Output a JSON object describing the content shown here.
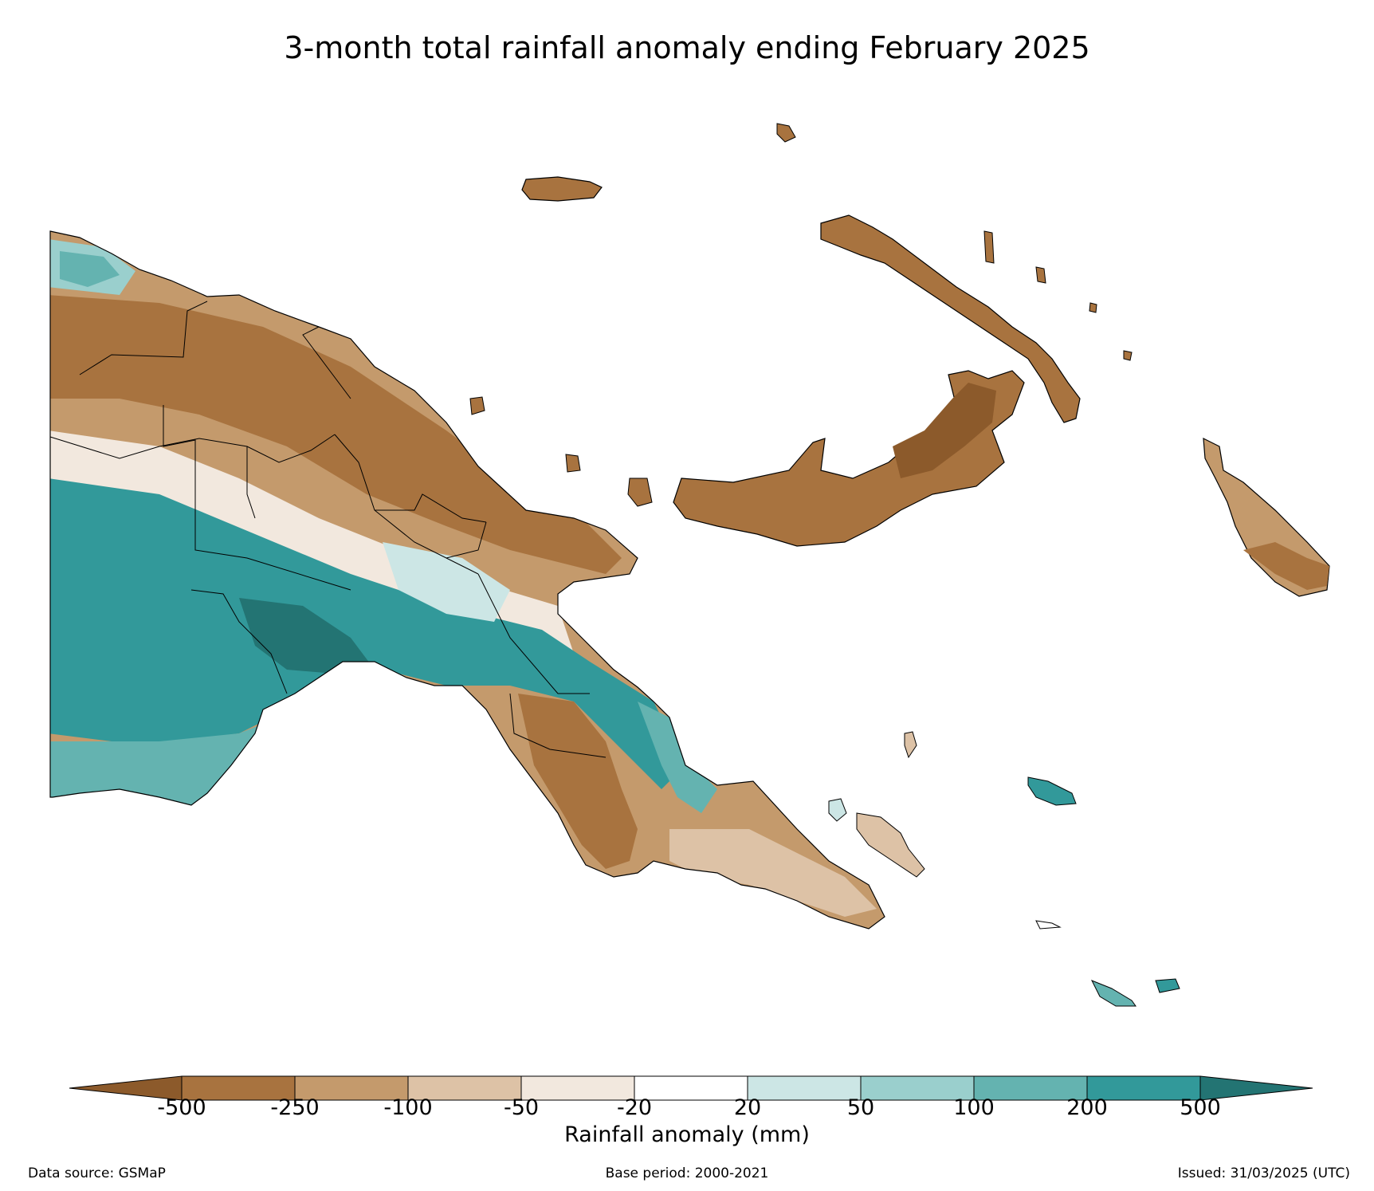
{
  "title": "3-month total rainfall anomaly ending February 2025",
  "colorbar": {
    "label": "Rainfall anomaly (mm)",
    "ticks": [
      "-500",
      "-250",
      "-100",
      "-50",
      "-20",
      "20",
      "50",
      "100",
      "200",
      "500"
    ],
    "colors": [
      "#8c5a2b",
      "#a8733f",
      "#c49a6c",
      "#ddc2a6",
      "#f2e8de",
      "#ffffff",
      "#cce6e5",
      "#9acfcd",
      "#64b3b0",
      "#32999a",
      "#237473"
    ]
  },
  "footer": {
    "data_source": "Data source: GSMaP",
    "base_period": "Base period: 2000-2021",
    "issued": "Issued: 31/03/2025 (UTC)"
  }
}
